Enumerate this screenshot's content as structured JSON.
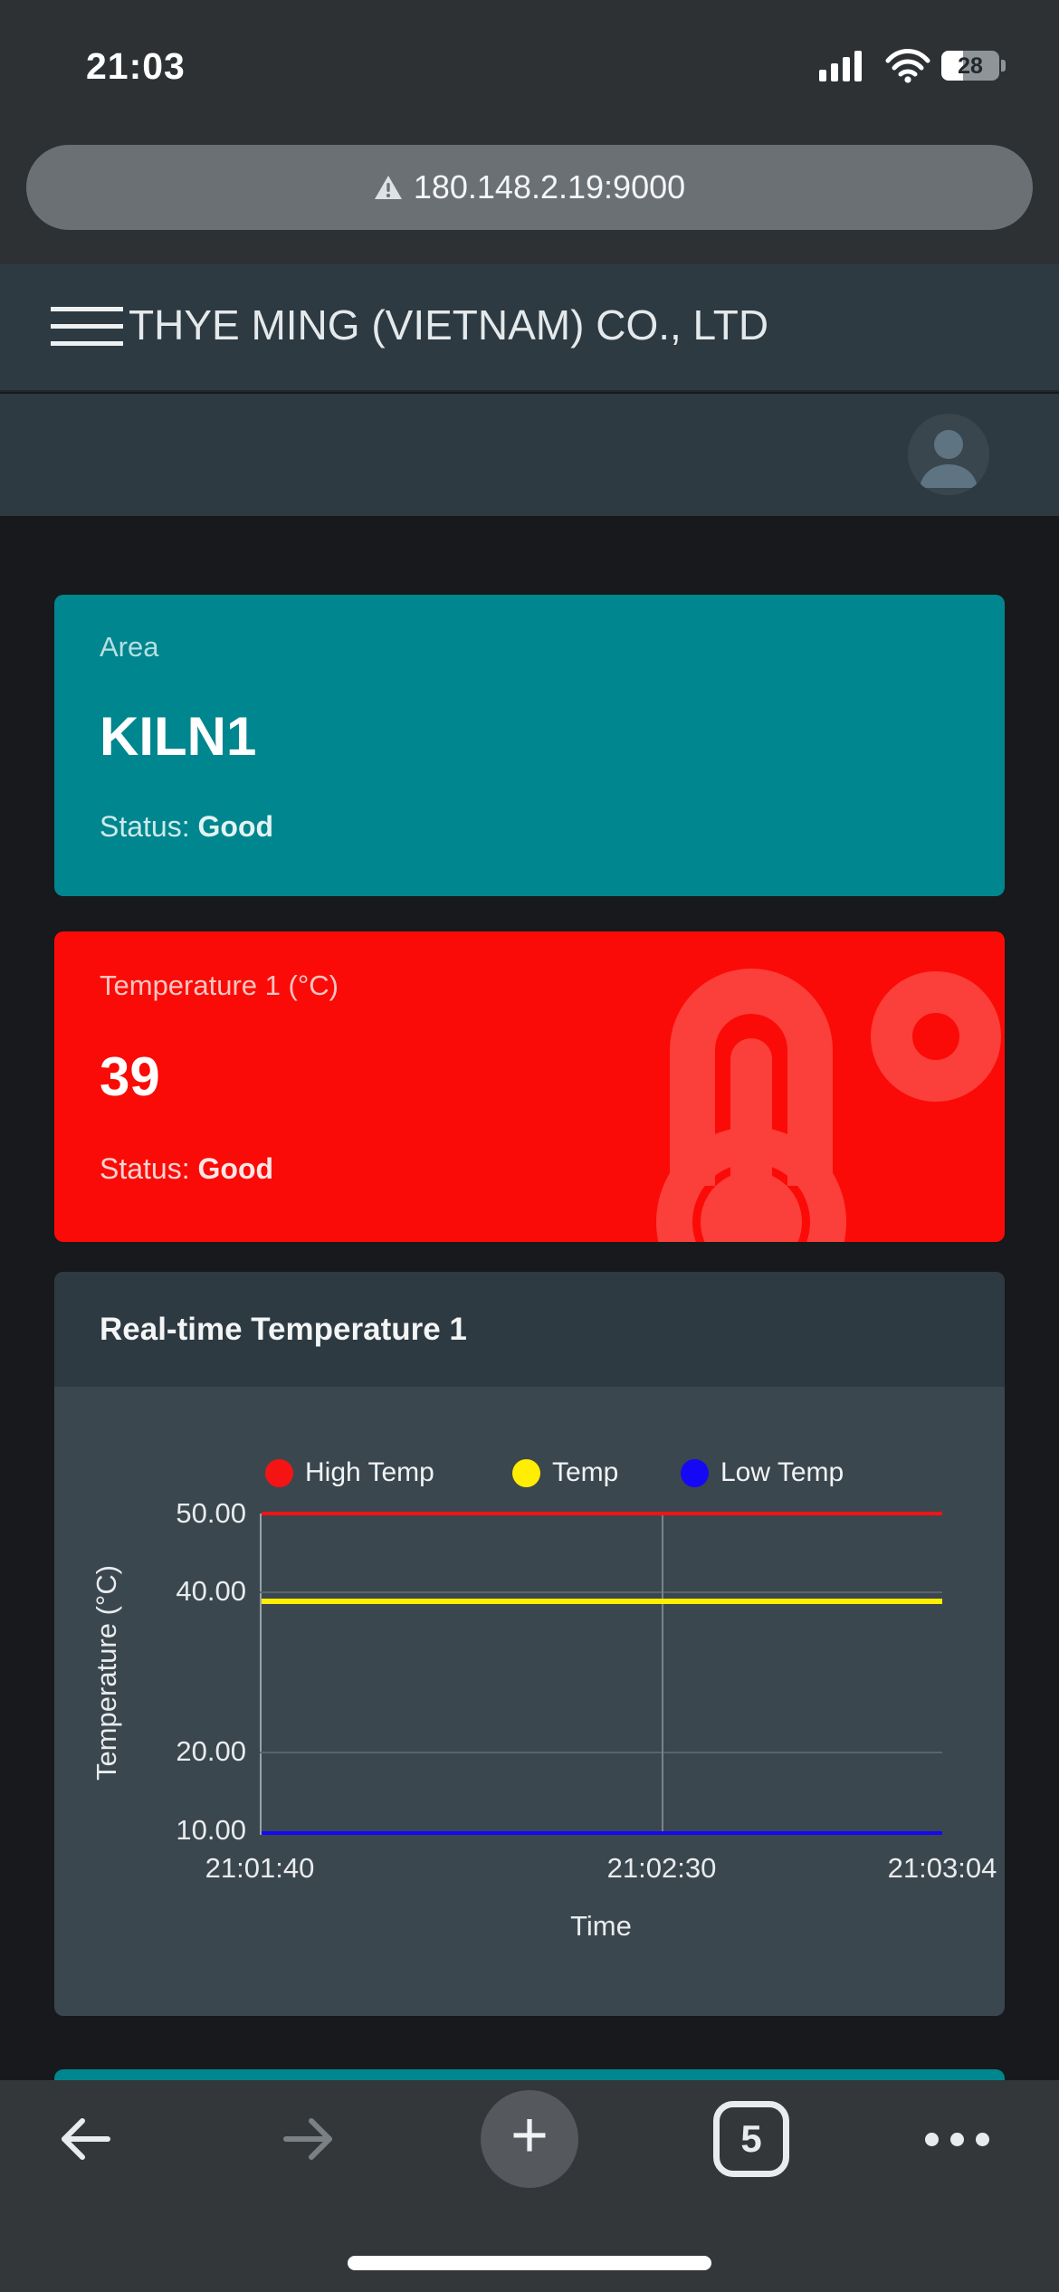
{
  "status_bar": {
    "time": "21:03",
    "battery_level": "28"
  },
  "browser": {
    "address": "180.148.2.19:9000",
    "tab_count": "5"
  },
  "header": {
    "title": "THYE MING (VIETNAM) CO., LTD"
  },
  "cards": {
    "area": {
      "label": "Area",
      "value": "KILN1",
      "status_label": "Status:",
      "status_value": "Good",
      "bg": "#00868e"
    },
    "temperature": {
      "label": "Temperature 1 (°C)",
      "value": "39",
      "status_label": "Status:",
      "status_value": "Good",
      "bg": "#fb0b07"
    }
  },
  "chart_card": {
    "title": "Real-time Temperature 1"
  },
  "chart_data": {
    "type": "line",
    "title": "Real-time Temperature 1",
    "xlabel": "Time",
    "ylabel": "Temperature (°C)",
    "ylim": [
      10,
      50
    ],
    "ytick_labels": [
      "50.00",
      "40.00",
      "20.00",
      "10.00"
    ],
    "ytick_values": [
      50,
      40,
      20,
      10
    ],
    "xtick_labels": [
      "21:01:40",
      "21:02:30",
      "21:03:04"
    ],
    "grid": true,
    "legend_position": "top",
    "series": [
      {
        "name": "High Temp",
        "color": "#f51414",
        "value": 50,
        "shape": "constant-line"
      },
      {
        "name": "Temp",
        "color": "#ffee00",
        "value": 39,
        "shape": "constant-line"
      },
      {
        "name": "Low Temp",
        "color": "#1508f5",
        "value": 10,
        "shape": "constant-line"
      }
    ]
  },
  "icons": {
    "translate": "google-translate",
    "warning": "not-secure-warning",
    "share": "ios-share",
    "signal": "cellular-4-bars",
    "wifi": "wifi-3-arcs",
    "battery": "battery-28",
    "hamburger": "menu",
    "avatar": "user-silhouette",
    "thermometer": "thermometer-watermark",
    "degree": "degree-ring",
    "back": "arrow-left",
    "forward": "arrow-right",
    "new_tab": "plus",
    "tabs": "tab-switcher",
    "more": "ellipsis-horizontal",
    "home": "home-indicator"
  }
}
